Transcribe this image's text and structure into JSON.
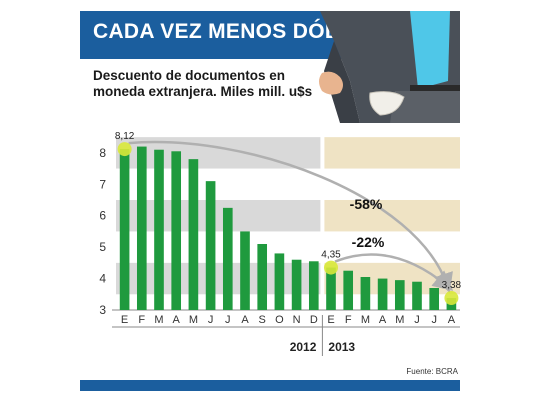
{
  "header": {
    "title": "CADA VEZ MENOS DÓLARES",
    "subtitle_line1": "Descuento de documentos en",
    "subtitle_line2": "moneda extranjera. Miles mill. u$s",
    "source": "Fuente: BCRA"
  },
  "colors": {
    "header_band": "#1b5e9e",
    "bar": "#1f9a3e",
    "band_2012": "#d9d9d9",
    "band_2013": "#efe3c4",
    "marker": "#d8e83a",
    "arrow": "#b0b0b0"
  },
  "icons": [
    "person-empty-pocket-illustration"
  ],
  "chart_data": {
    "type": "bar",
    "title": "CADA VEZ MENOS DÓLARES",
    "subtitle": "Descuento de documentos en moneda extranjera. Miles mill. u$s",
    "categories": [
      "E",
      "F",
      "M",
      "A",
      "M",
      "J",
      "J",
      "A",
      "S",
      "O",
      "N",
      "D",
      "E",
      "F",
      "M",
      "A",
      "M",
      "J",
      "J",
      "A"
    ],
    "values": [
      8.12,
      8.2,
      8.1,
      8.05,
      7.8,
      7.1,
      6.25,
      5.5,
      5.1,
      4.8,
      4.6,
      4.55,
      4.35,
      4.25,
      4.05,
      4.0,
      3.95,
      3.9,
      3.7,
      3.38
    ],
    "years": [
      {
        "label": "2012",
        "start": 0,
        "end": 11
      },
      {
        "label": "2013",
        "start": 12,
        "end": 19
      }
    ],
    "yticks": [
      3,
      4,
      5,
      6,
      7,
      8
    ],
    "ylim": [
      3,
      8.6
    ],
    "grid": false,
    "data_labels": [
      {
        "index": 0,
        "text": "8,12"
      },
      {
        "index": 12,
        "text": "4,35"
      },
      {
        "index": 19,
        "text": "3,38"
      }
    ],
    "annotations": [
      {
        "text": "-58%",
        "from": 0,
        "to": 19
      },
      {
        "text": "-22%",
        "from": 12,
        "to": 19
      }
    ]
  }
}
